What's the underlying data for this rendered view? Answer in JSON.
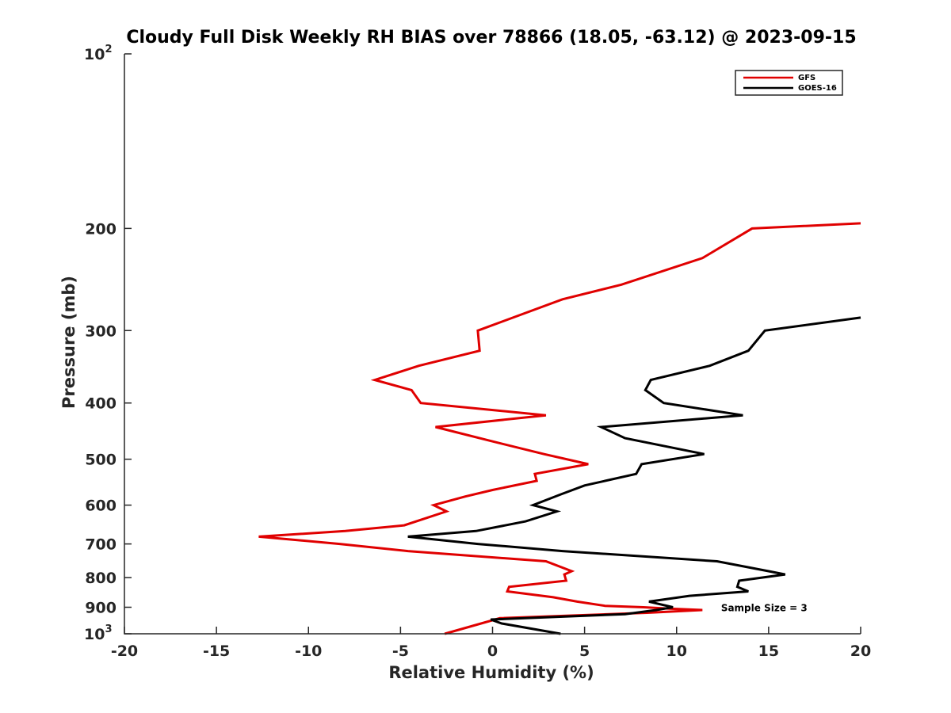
{
  "chart_data": {
    "type": "line",
    "title": "Cloudy Full Disk Weekly RH BIAS over 78866 (18.05, -63.12) @ 2023-09-15",
    "xlabel": "Relative Humidity (%)",
    "ylabel": "Pressure (mb)",
    "xlim": [
      -20,
      20
    ],
    "ylim": [
      100,
      1000
    ],
    "yscale": "log",
    "y_reversed": true,
    "grid": false,
    "legend_position": "top-right",
    "x_ticks": [
      {
        "value": -20,
        "label": "-20"
      },
      {
        "value": -15,
        "label": "-15"
      },
      {
        "value": -10,
        "label": "-10"
      },
      {
        "value": -5,
        "label": "-5"
      },
      {
        "value": 0,
        "label": "0"
      },
      {
        "value": 5,
        "label": "5"
      },
      {
        "value": 10,
        "label": "10"
      },
      {
        "value": 15,
        "label": "15"
      },
      {
        "value": 20,
        "label": "20"
      }
    ],
    "y_ticks": [
      {
        "value": 100,
        "label": "10",
        "exponent": "2"
      },
      {
        "value": 200,
        "label": "200"
      },
      {
        "value": 300,
        "label": "300"
      },
      {
        "value": 400,
        "label": "400"
      },
      {
        "value": 500,
        "label": "500"
      },
      {
        "value": 600,
        "label": "600"
      },
      {
        "value": 700,
        "label": "700"
      },
      {
        "value": 800,
        "label": "800"
      },
      {
        "value": 900,
        "label": "900"
      },
      {
        "value": 1000,
        "label": "10",
        "exponent": "3"
      }
    ],
    "annotation": "Sample Size = 3",
    "annotation_at": {
      "x": 12.5,
      "y": 900
    },
    "series": [
      {
        "name": "GFS",
        "color": "#e00000",
        "points": [
          [
            20.0,
            196
          ],
          [
            14.1,
            200
          ],
          [
            11.4,
            225
          ],
          [
            7.0,
            250
          ],
          [
            3.8,
            265
          ],
          [
            -0.8,
            300
          ],
          [
            -0.7,
            325
          ],
          [
            -4.0,
            345
          ],
          [
            -6.4,
            365
          ],
          [
            -4.4,
            380
          ],
          [
            -3.9,
            400
          ],
          [
            2.9,
            420
          ],
          [
            -3.1,
            440
          ],
          [
            -0.1,
            465
          ],
          [
            2.8,
            490
          ],
          [
            5.2,
            510
          ],
          [
            2.3,
            530
          ],
          [
            2.4,
            545
          ],
          [
            0.0,
            565
          ],
          [
            -1.5,
            580
          ],
          [
            -3.2,
            600
          ],
          [
            -2.5,
            615
          ],
          [
            -4.8,
            650
          ],
          [
            -8.0,
            665
          ],
          [
            -12.7,
            680
          ],
          [
            -8.3,
            700
          ],
          [
            -4.6,
            720
          ],
          [
            2.9,
            750
          ],
          [
            4.3,
            780
          ],
          [
            3.9,
            790
          ],
          [
            4.0,
            810
          ],
          [
            0.9,
            830
          ],
          [
            0.8,
            845
          ],
          [
            3.3,
            865
          ],
          [
            4.6,
            880
          ],
          [
            6.1,
            895
          ],
          [
            8.2,
            900
          ],
          [
            9.6,
            905
          ],
          [
            11.4,
            910
          ],
          [
            8.4,
            920
          ],
          [
            0.4,
            940
          ],
          [
            -2.6,
            1000
          ]
        ]
      },
      {
        "name": "GOES-16",
        "color": "#000000",
        "points": [
          [
            20.0,
            285
          ],
          [
            14.8,
            300
          ],
          [
            13.9,
            325
          ],
          [
            11.8,
            345
          ],
          [
            8.6,
            365
          ],
          [
            8.3,
            380
          ],
          [
            9.3,
            400
          ],
          [
            13.6,
            420
          ],
          [
            5.9,
            440
          ],
          [
            7.2,
            460
          ],
          [
            11.5,
            490
          ],
          [
            8.1,
            510
          ],
          [
            7.8,
            530
          ],
          [
            5.0,
            555
          ],
          [
            3.7,
            575
          ],
          [
            2.2,
            600
          ],
          [
            3.5,
            615
          ],
          [
            1.8,
            640
          ],
          [
            -0.9,
            665
          ],
          [
            -4.6,
            680
          ],
          [
            -0.8,
            700
          ],
          [
            3.8,
            720
          ],
          [
            12.2,
            750
          ],
          [
            15.0,
            780
          ],
          [
            15.9,
            790
          ],
          [
            13.4,
            810
          ],
          [
            13.3,
            830
          ],
          [
            13.9,
            845
          ],
          [
            10.7,
            860
          ],
          [
            8.5,
            880
          ],
          [
            9.8,
            900
          ],
          [
            8.9,
            910
          ],
          [
            7.2,
            925
          ],
          [
            -0.1,
            945
          ],
          [
            0.5,
            960
          ],
          [
            3.7,
            1000
          ]
        ]
      }
    ]
  }
}
